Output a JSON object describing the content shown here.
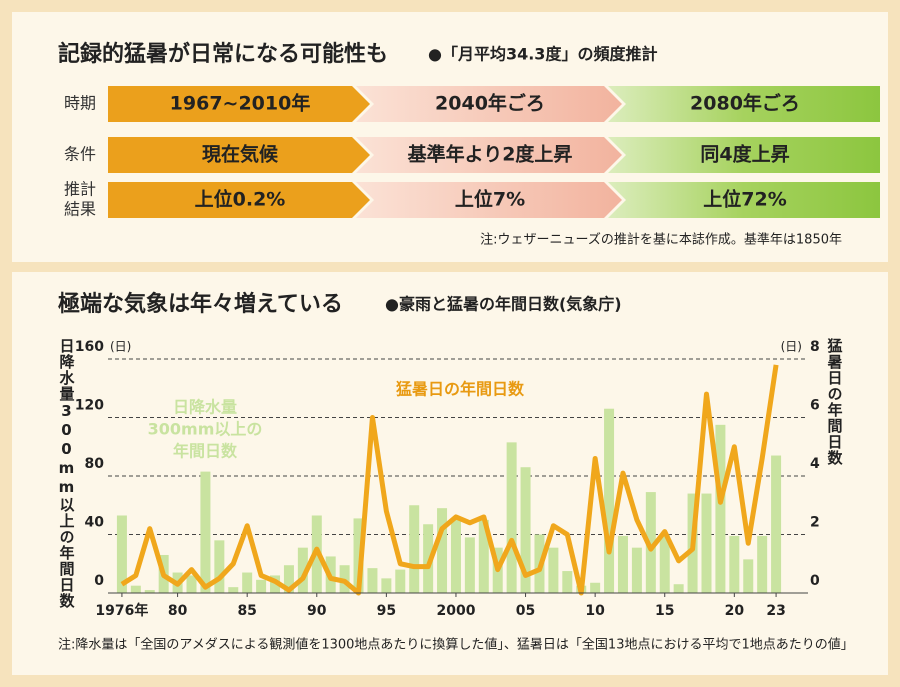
{
  "top": {
    "title": "記録的猛暑が日常になる可能性も",
    "subtitle": "●「月平均34.3度」の頻度推計",
    "rows": [
      {
        "label": [
          "時期"
        ],
        "cells": [
          "1967~2010年",
          "2040年ごろ",
          "2080年ごろ"
        ]
      },
      {
        "label": [
          "条件"
        ],
        "cells": [
          "現在気候",
          "基準年より2度上昇",
          "同4度上昇"
        ]
      },
      {
        "label": [
          "推計",
          "結果"
        ],
        "cells": [
          "上位0.2%",
          "上位7%",
          "上位72%"
        ]
      }
    ],
    "note": "注:ウェザーニューズの推計を基に本誌作成。基準年は1850年"
  },
  "chart_data": {
    "type": "combo",
    "title": "極端な気象は年々増えている",
    "subtitle": "●豪雨と猛暑の年間日数(気象庁)",
    "y_label": "日降水量300mm以上の年間日数",
    "y2_label": "猛暑日の年間日数",
    "y_unit": "(日)",
    "y2_unit": "(日)",
    "x": [
      1976,
      1977,
      1978,
      1979,
      1980,
      1981,
      1982,
      1983,
      1984,
      1985,
      1986,
      1987,
      1988,
      1989,
      1990,
      1991,
      1992,
      1993,
      1994,
      1995,
      1996,
      1997,
      1998,
      1999,
      2000,
      2001,
      2002,
      2003,
      2004,
      2005,
      2006,
      2007,
      2008,
      2009,
      2010,
      2011,
      2012,
      2013,
      2014,
      2015,
      2016,
      2017,
      2018,
      2019,
      2020,
      2021,
      2022,
      2023
    ],
    "series": [
      {
        "type": "bar",
        "label_lines": [
          "日降水量",
          "300mm以上の",
          "年間日数"
        ],
        "color": "#c9e3a0",
        "axis": "y",
        "values": [
          53,
          5,
          2,
          26,
          14,
          12,
          83,
          36,
          4,
          14,
          9,
          12,
          19,
          31,
          53,
          25,
          19,
          51,
          17,
          10,
          16,
          60,
          47,
          58,
          51,
          38,
          50,
          31,
          103,
          86,
          40,
          31,
          15,
          5,
          7,
          126,
          39,
          31,
          69,
          40,
          6,
          68,
          68,
          115,
          39,
          23,
          39,
          94
        ]
      },
      {
        "type": "line",
        "name": "猛暑日の年間日数",
        "color": "#f0a71c",
        "axis": "y2",
        "values": [
          0.3,
          0.6,
          2.2,
          0.6,
          0.3,
          0.8,
          0.2,
          0.5,
          1.0,
          2.3,
          0.6,
          0.4,
          0.1,
          0.5,
          1.5,
          0.5,
          0.4,
          0,
          6.0,
          2.8,
          1.0,
          0.9,
          0.9,
          2.2,
          2.6,
          2.4,
          2.6,
          0.8,
          1.8,
          0.6,
          0.8,
          2.3,
          2.0,
          0,
          4.6,
          1.4,
          4.1,
          2.5,
          1.5,
          2.1,
          1.1,
          1.5,
          6.8,
          3.1,
          5.0,
          1.7,
          4.6,
          7.8
        ]
      }
    ],
    "xlim": [
      1975,
      2024
    ],
    "xticks": [
      {
        "value": 1976,
        "label": "1976年"
      },
      {
        "value": 1980,
        "label": "80"
      },
      {
        "value": 1985,
        "label": "85"
      },
      {
        "value": 1990,
        "label": "90"
      },
      {
        "value": 1995,
        "label": "95"
      },
      2000,
      {
        "value": 2005,
        "label": "05"
      },
      {
        "value": 2010,
        "label": "10"
      },
      {
        "value": 2015,
        "label": "15"
      },
      {
        "value": 2020,
        "label": "20"
      },
      {
        "value": 2023,
        "label": "23"
      }
    ],
    "ylim": [
      0,
      160
    ],
    "yticks": [
      0,
      40,
      80,
      120,
      160
    ],
    "y2lim": [
      0,
      8
    ],
    "y2ticks": [
      0,
      2,
      4,
      6,
      8
    ],
    "grid": true,
    "note": "注:降水量は「全国のアメダスによる観測値を1300地点あたりに換算した値」、猛暑日は「全国13地点における平均で1地点あたりの値」"
  }
}
